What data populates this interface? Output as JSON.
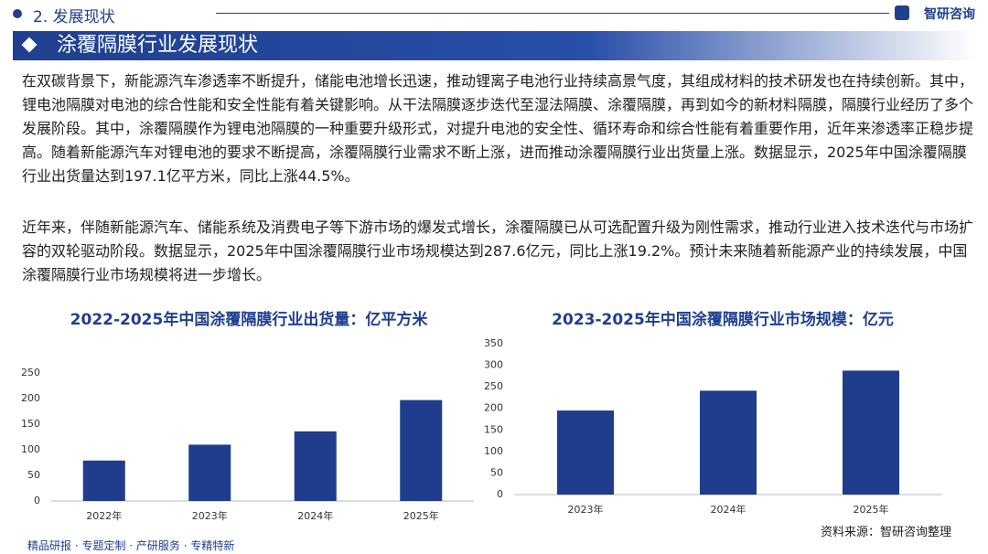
{
  "header": {
    "section": "2. 发展现状",
    "logo": "智研咨询",
    "title": "涂覆隔膜行业发展现状"
  },
  "body": {
    "paragraphs": [
      "在双碳背景下，新能源汽车渗透率不断提升，储能电池增长迅速，推动锂离子电池行业持续高景气度，其组成材料的技术研发也在持续创新。其中，锂电池隔膜对电池的综合性能和安全性能有着关键影响。从干法隔膜逐步迭代至湿法隔膜、涂覆隔膜，再到如今的新材料隔膜，隔膜行业经历了多个发展阶段。其中，涂覆隔膜作为锂电池隔膜的一种重要升级形式，对提升电池的安全性、循环寿命和综合性能有着重要作用，近年来渗透率正稳步提高。随着新能源汽车对锂电池的要求不断提高，涂覆隔膜行业需求不断上涨，进而推动涂覆隔膜行业出货量上涨。数据显示，2025年中国涂覆隔膜行业出货量达到197.1亿平方米，同比上涨44.5%。",
      "近年来，伴随新能源汽车、储能系统及消费电子等下游市场的爆发式增长，涂覆隔膜已从可选配置升级为刚性需求，推动行业进入技术迭代与市场扩容的双轮驱动阶段。数据显示，2025年中国涂覆隔膜行业市场规模达到287.6亿元，同比上涨19.2%。预计未来随着新能源产业的持续发展，中国涂覆隔膜行业市场规模将进一步增长。"
    ]
  },
  "chart_data": [
    {
      "type": "bar",
      "title": "2022-2025年中国涂覆隔膜行业出货量：亿平方米",
      "categories": [
        "2022年",
        "2023年",
        "2024年",
        "2025年"
      ],
      "values": [
        79,
        110,
        136,
        197.1
      ],
      "color": "#1f3d8c",
      "ylim": [
        0,
        250
      ],
      "yticks": [
        0,
        50,
        100,
        150,
        200,
        250
      ],
      "grid": false
    },
    {
      "type": "bar",
      "title": "2023-2025年中国涂覆隔膜行业市场规模：亿元",
      "categories": [
        "2023年",
        "2024年",
        "2025年"
      ],
      "values": [
        195,
        241,
        287.6
      ],
      "color": "#1f3d8c",
      "ylim": [
        0,
        350
      ],
      "yticks": [
        0,
        50,
        100,
        150,
        200,
        250,
        300,
        350
      ],
      "grid": false
    }
  ],
  "footer": {
    "services": "精品研报 · 专题定制 · 产研服务 · 专精特新",
    "source": "资料来源：智研咨询整理"
  }
}
